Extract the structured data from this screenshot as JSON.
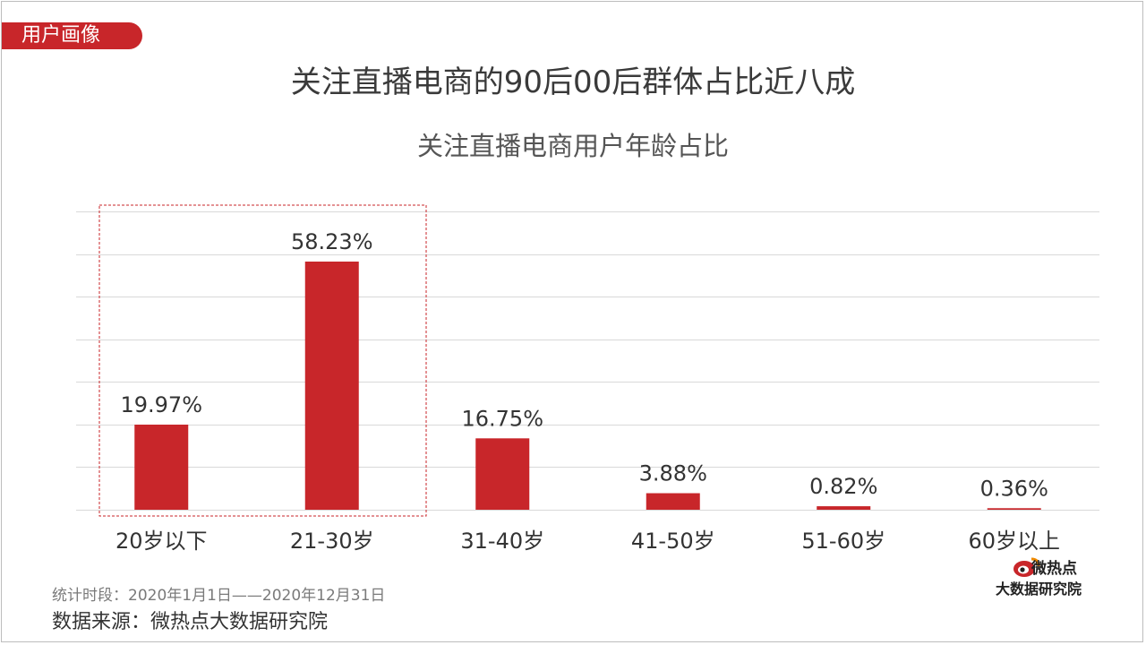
{
  "header": {
    "tag_label": "用户画像",
    "headline": "关注直播电商的90后00后群体占比近八成",
    "subtitle": "关注直播电商用户年龄占比"
  },
  "footer": {
    "period": "统计时段：2020年1月1日——2020年12月31日",
    "source": "数据来源：微热点大数据研究院"
  },
  "logo": {
    "line1": "微热点",
    "line2": "大数据研究院",
    "icon": "weibo-eye-icon"
  },
  "colors": {
    "bar": "#c8262a",
    "tag": "#c8262a",
    "highlight_box": "#c8262a",
    "grid": "#d9d9d9"
  },
  "chart_data": {
    "type": "bar",
    "title": "关注直播电商用户年龄占比",
    "xlabel": "",
    "ylabel": "",
    "categories": [
      "20岁以下",
      "21-30岁",
      "31-40岁",
      "41-50岁",
      "51-60岁",
      "60岁以上"
    ],
    "values": [
      19.97,
      58.23,
      16.75,
      3.88,
      0.82,
      0.36
    ],
    "value_labels": [
      "19.97%",
      "58.23%",
      "16.75%",
      "3.88%",
      "0.82%",
      "0.36%"
    ],
    "ylim": [
      0,
      70
    ],
    "grid": true,
    "highlighted_categories": [
      "20岁以下",
      "21-30岁"
    ]
  }
}
